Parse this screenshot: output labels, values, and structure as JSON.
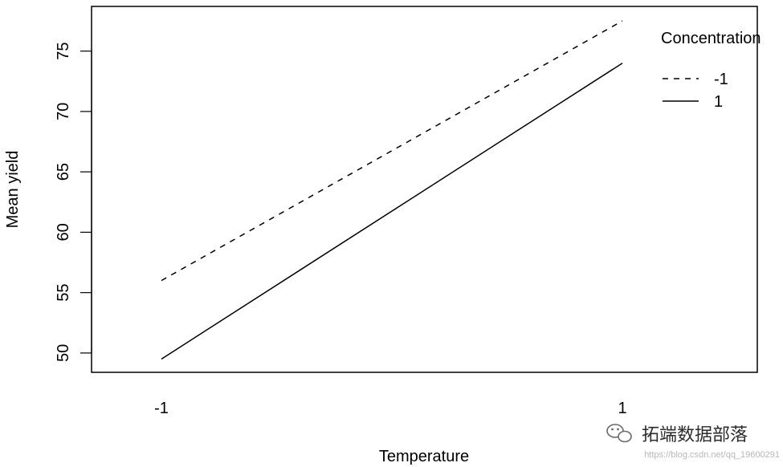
{
  "chart_data": {
    "type": "line",
    "title": "",
    "xlabel": "Temperature",
    "ylabel": "Mean yield",
    "x": [
      "-1",
      "1"
    ],
    "ylim": [
      48.4,
      78.7
    ],
    "yticks": [
      50,
      55,
      60,
      65,
      70,
      75
    ],
    "ytick_labels": [
      "50",
      "55",
      "60",
      "65",
      "70",
      "75"
    ],
    "legend": {
      "title": "Concentration",
      "position": "top-right"
    },
    "series": [
      {
        "name": "-1",
        "values": [
          56.0,
          77.5
        ],
        "linestyle": "dashed",
        "color": "#000000"
      },
      {
        "name": "1",
        "values": [
          49.5,
          74.0
        ],
        "linestyle": "solid",
        "color": "#000000"
      }
    ],
    "grid": false
  },
  "watermark": {
    "text": "拓端数据部落",
    "url": "https://blog.csdn.net/qq_19600291",
    "icon": "wechat-icon"
  }
}
